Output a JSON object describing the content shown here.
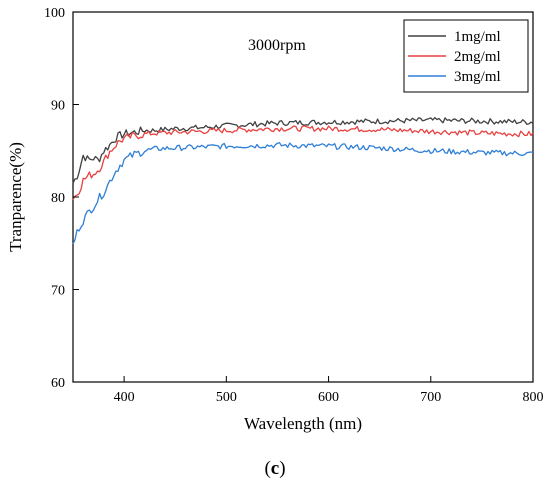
{
  "figure_label_prefix": "(",
  "figure_label_letter": "c",
  "figure_label_suffix": ")",
  "chart_data": {
    "type": "line",
    "title": "",
    "annotation": "3000rpm",
    "xlabel": "Wavelength (nm)",
    "ylabel": "Tranparence(%)",
    "xlim": [
      350,
      800
    ],
    "ylim": [
      60,
      100
    ],
    "xticks": [
      400,
      500,
      600,
      700,
      800
    ],
    "yticks": [
      60,
      70,
      80,
      90,
      100
    ],
    "grid": false,
    "legend_position": "top-right",
    "series": [
      {
        "name": "1mg/ml",
        "color": "#404040",
        "x": [
          350,
          355,
          360,
          365,
          370,
          375,
          380,
          385,
          390,
          395,
          400,
          410,
          420,
          430,
          450,
          475,
          500,
          550,
          600,
          650,
          700,
          750,
          800
        ],
        "y": [
          81.5,
          82.5,
          84.5,
          84.0,
          84.2,
          84.0,
          85.0,
          85.5,
          86.2,
          86.6,
          86.8,
          87.0,
          87.2,
          87.2,
          87.4,
          87.5,
          87.7,
          88.0,
          88.1,
          88.2,
          88.3,
          88.2,
          88.1
        ]
      },
      {
        "name": "2mg/ml",
        "color": "#e84040",
        "x": [
          350,
          355,
          360,
          365,
          370,
          375,
          380,
          385,
          390,
          395,
          400,
          410,
          420,
          430,
          450,
          475,
          500,
          550,
          600,
          650,
          700,
          750,
          800
        ],
        "y": [
          79.8,
          80.5,
          81.8,
          82.3,
          82.5,
          83.0,
          83.8,
          84.8,
          85.4,
          86.0,
          86.3,
          86.6,
          86.8,
          86.9,
          87.0,
          87.1,
          87.2,
          87.4,
          87.4,
          87.3,
          87.1,
          86.9,
          86.8
        ]
      },
      {
        "name": "3mg/ml",
        "color": "#2f7fd6",
        "x": [
          350,
          355,
          360,
          365,
          370,
          375,
          380,
          385,
          390,
          395,
          400,
          410,
          420,
          430,
          450,
          475,
          500,
          550,
          600,
          650,
          700,
          750,
          800
        ],
        "y": [
          74.8,
          76.5,
          77.5,
          78.3,
          79.0,
          79.8,
          80.5,
          81.5,
          82.5,
          83.3,
          84.0,
          84.6,
          85.0,
          85.2,
          85.3,
          85.4,
          85.5,
          85.6,
          85.5,
          85.3,
          85.0,
          84.8,
          84.7
        ]
      }
    ]
  }
}
